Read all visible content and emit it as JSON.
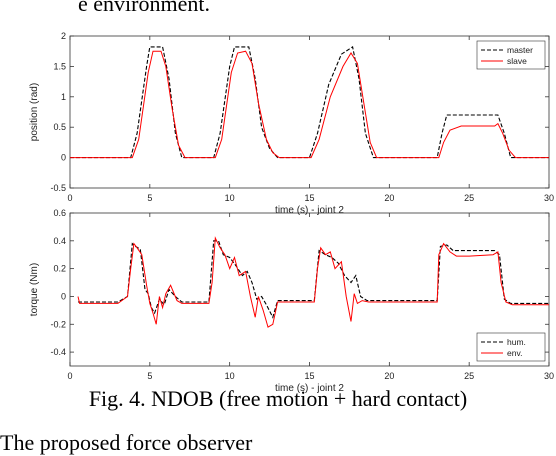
{
  "page": {
    "top_text": "e environment.",
    "caption": "Fig. 4.  NDOB  (free motion  + hard contact)",
    "bottom_text": "The proposed force observer"
  },
  "chart_data": [
    {
      "type": "line",
      "title": "",
      "xlabel": "time (s) - joint 2",
      "ylabel": "position (rad)",
      "xlim": [
        0,
        30
      ],
      "ylim": [
        -0.5,
        2
      ],
      "xticks": [
        "0",
        "5",
        "10",
        "15",
        "20",
        "25",
        "30"
      ],
      "yticks": [
        "-0.5",
        "0",
        "0.5",
        "1",
        "1.5",
        "2"
      ],
      "grid": false,
      "legend": "top-right",
      "series": [
        {
          "name": "master",
          "style": "dashed",
          "color": "#000000",
          "x": [
            0,
            3.8,
            4.2,
            4.8,
            5.0,
            5.8,
            6.2,
            6.6,
            7.0,
            9.0,
            9.4,
            10.0,
            10.3,
            11.2,
            11.6,
            12.0,
            12.5,
            13.0,
            15.0,
            15.5,
            16.2,
            17.0,
            17.7,
            18.1,
            18.5,
            19.0,
            23.0,
            23.3,
            23.6,
            26.8,
            27.2,
            27.6,
            30
          ],
          "y": [
            0,
            0,
            0.4,
            1.5,
            1.82,
            1.82,
            1.3,
            0.4,
            0,
            0,
            0.4,
            1.5,
            1.82,
            1.82,
            1.3,
            0.5,
            0.15,
            0,
            0,
            0.4,
            1.2,
            1.7,
            1.82,
            1.3,
            0.4,
            0,
            0,
            0.4,
            0.7,
            0.7,
            0.4,
            0,
            0
          ]
        },
        {
          "name": "slave",
          "style": "solid",
          "color": "#ff0000",
          "x": [
            0,
            3.9,
            4.3,
            4.9,
            5.2,
            5.7,
            6.0,
            6.4,
            6.8,
            7.2,
            9.1,
            9.5,
            10.1,
            10.5,
            11.0,
            11.4,
            11.8,
            12.3,
            12.7,
            13.1,
            15.1,
            15.6,
            16.3,
            17.1,
            17.6,
            18.0,
            18.4,
            18.8,
            19.2,
            23.1,
            23.4,
            23.8,
            24.5,
            26.6,
            26.8,
            27.1,
            27.5,
            27.9,
            30
          ],
          "y": [
            0,
            0,
            0.3,
            1.4,
            1.75,
            1.75,
            1.5,
            0.8,
            0.2,
            0,
            0,
            0.3,
            1.4,
            1.72,
            1.75,
            1.55,
            0.9,
            0.3,
            0.08,
            0,
            0,
            0.3,
            1.0,
            1.5,
            1.72,
            1.55,
            0.9,
            0.25,
            0,
            0,
            0.25,
            0.45,
            0.52,
            0.52,
            0.56,
            0.4,
            0.12,
            0,
            0
          ]
        }
      ]
    },
    {
      "type": "line",
      "title": "",
      "xlabel": "time (s) - joint 2",
      "ylabel": "torque (Nm)",
      "xlim": [
        0,
        30
      ],
      "ylim": [
        -0.5,
        0.6
      ],
      "xticks": [
        "0",
        "5",
        "10",
        "15",
        "20",
        "25",
        "30"
      ],
      "yticks": [
        "-0.4",
        "-0.2",
        "0",
        "0.2",
        "0.4",
        "0.6"
      ],
      "grid": false,
      "legend": "bottom-right",
      "series": [
        {
          "name": "hum.",
          "style": "dashed",
          "color": "#000000",
          "x": [
            0.5,
            1,
            3,
            3.6,
            3.9,
            4.1,
            4.4,
            4.7,
            4.9,
            5.1,
            5.3,
            5.6,
            5.9,
            6.2,
            6.6,
            7.0,
            8.7,
            9.0,
            9.3,
            9.6,
            10.0,
            10.4,
            10.8,
            11.1,
            11.4,
            11.7,
            12.0,
            12.3,
            12.7,
            13.0,
            15.3,
            15.6,
            16.0,
            16.4,
            16.8,
            17.2,
            17.6,
            17.9,
            18.2,
            18.6,
            19.0,
            23.0,
            23.2,
            23.6,
            24.0,
            25.0,
            26.6,
            26.9,
            27.2,
            27.6,
            28.0,
            30
          ],
          "y": [
            -0.04,
            -0.04,
            -0.04,
            0.0,
            0.38,
            0.36,
            0.34,
            0.05,
            0.02,
            -0.08,
            -0.12,
            -0.02,
            -0.06,
            0.05,
            0.0,
            -0.04,
            -0.04,
            0.4,
            0.4,
            0.3,
            0.28,
            0.22,
            0.15,
            0.18,
            0.1,
            -0.02,
            0.0,
            -0.06,
            -0.15,
            -0.03,
            -0.03,
            0.33,
            0.3,
            0.28,
            0.24,
            0.15,
            0.1,
            0.15,
            0.0,
            -0.03,
            -0.03,
            -0.03,
            0.36,
            0.37,
            0.33,
            0.33,
            0.33,
            0.3,
            -0.02,
            -0.05,
            -0.05,
            -0.05
          ]
        },
        {
          "name": "env.",
          "style": "solid",
          "color": "#ff0000",
          "x": [
            0.5,
            0.6,
            1,
            3,
            3.6,
            3.8,
            4.0,
            4.2,
            4.5,
            4.8,
            5.0,
            5.2,
            5.4,
            5.6,
            5.8,
            6.0,
            6.3,
            6.7,
            7.0,
            8.7,
            8.9,
            9.1,
            9.4,
            9.7,
            10.0,
            10.3,
            10.6,
            11.0,
            11.3,
            11.6,
            11.8,
            12.1,
            12.4,
            12.7,
            13.0,
            15.3,
            15.5,
            15.7,
            16.0,
            16.3,
            16.6,
            17.0,
            17.3,
            17.6,
            17.8,
            18.0,
            18.3,
            18.7,
            19.0,
            23.0,
            23.1,
            23.4,
            23.8,
            24.2,
            25.0,
            26.5,
            26.8,
            27.0,
            27.3,
            27.7,
            28.0,
            30
          ],
          "y": [
            0.0,
            -0.05,
            -0.05,
            -0.05,
            0.0,
            0.2,
            0.38,
            0.35,
            0.3,
            0.08,
            -0.05,
            -0.12,
            -0.2,
            0.0,
            -0.08,
            0.02,
            0.08,
            -0.03,
            -0.05,
            -0.05,
            0.1,
            0.42,
            0.35,
            0.3,
            0.2,
            0.28,
            0.15,
            0.18,
            0.0,
            -0.15,
            0.0,
            -0.1,
            -0.22,
            -0.2,
            -0.04,
            -0.04,
            0.2,
            0.35,
            0.3,
            0.32,
            0.2,
            0.25,
            0.0,
            -0.18,
            0.02,
            -0.05,
            -0.03,
            -0.04,
            -0.04,
            -0.04,
            0.3,
            0.38,
            0.32,
            0.29,
            0.29,
            0.3,
            0.32,
            0.1,
            -0.04,
            -0.06,
            -0.06,
            -0.06
          ]
        }
      ]
    }
  ]
}
